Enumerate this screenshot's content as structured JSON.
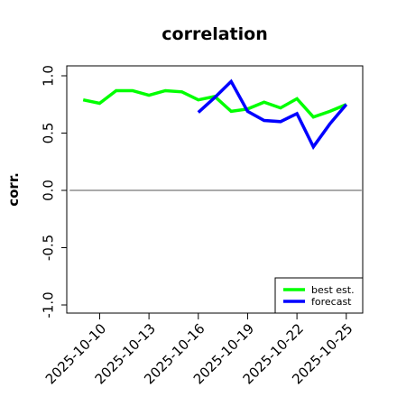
{
  "chart_data": {
    "type": "line",
    "title": "correlation",
    "xlabel": "",
    "ylabel": "corr.",
    "x": [
      "2025-10-09",
      "2025-10-10",
      "2025-10-11",
      "2025-10-12",
      "2025-10-13",
      "2025-10-14",
      "2025-10-15",
      "2025-10-16",
      "2025-10-17",
      "2025-10-18",
      "2025-10-19",
      "2025-10-20",
      "2025-10-21",
      "2025-10-22",
      "2025-10-23",
      "2025-10-24",
      "2025-10-25"
    ],
    "x_ticks": [
      "2025-10-10",
      "2025-10-13",
      "2025-10-16",
      "2025-10-19",
      "2025-10-22",
      "2025-10-25"
    ],
    "highlight_tick": "2025-10-16",
    "highlight_color": "#228b22",
    "ylim": [
      -1.0,
      1.0
    ],
    "xlim": [
      "2025-10-08",
      "2025-10-26"
    ],
    "y_ticks": [
      -1.0,
      -0.5,
      0.0,
      0.5,
      1.0
    ],
    "y_tick_labels": [
      "-1.0",
      "-0.5",
      "0.0",
      "0.5",
      "1.0"
    ],
    "reference_line": 0.0,
    "legend_position": "bottom-right",
    "series": [
      {
        "name": "best est.",
        "color": "#00ff00",
        "x": [
          "2025-10-09",
          "2025-10-10",
          "2025-10-11",
          "2025-10-12",
          "2025-10-13",
          "2025-10-14",
          "2025-10-15",
          "2025-10-16",
          "2025-10-17",
          "2025-10-18",
          "2025-10-19",
          "2025-10-20",
          "2025-10-21",
          "2025-10-22",
          "2025-10-23",
          "2025-10-24",
          "2025-10-25"
        ],
        "values": [
          0.79,
          0.76,
          0.87,
          0.87,
          0.83,
          0.87,
          0.86,
          0.79,
          0.82,
          0.69,
          0.71,
          0.77,
          0.72,
          0.8,
          0.64,
          0.69,
          0.75
        ]
      },
      {
        "name": "forecast",
        "color": "#0000ff",
        "x": [
          "2025-10-16",
          "2025-10-17",
          "2025-10-18",
          "2025-10-19",
          "2025-10-20",
          "2025-10-21",
          "2025-10-22",
          "2025-10-23",
          "2025-10-24",
          "2025-10-25"
        ],
        "values": [
          0.68,
          0.81,
          0.95,
          0.69,
          0.61,
          0.6,
          0.67,
          0.38,
          0.58,
          0.75
        ]
      }
    ]
  }
}
